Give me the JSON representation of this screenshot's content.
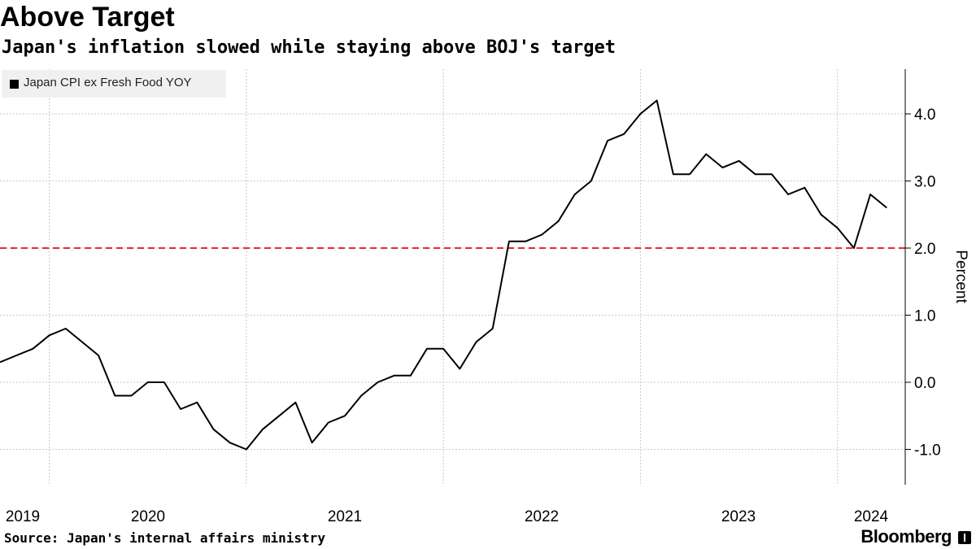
{
  "header": {
    "title": "Above Target",
    "subtitle": "Japan's inflation slowed while staying above BOJ's target"
  },
  "footer": {
    "source": "Source: Japan's internal affairs ministry",
    "brand": "Bloomberg"
  },
  "chart_data": {
    "type": "line",
    "title": "Above Target",
    "subtitle": "Japan's inflation slowed while staying above BOJ's target",
    "ylabel": "Percent",
    "xlabel": "",
    "ylim": [
      -1.5,
      4.7
    ],
    "yticks": [
      -1.0,
      0.0,
      1.0,
      2.0,
      3.0,
      4.0
    ],
    "ytick_labels": [
      "-1.0",
      "0.0",
      "1.0",
      "2.0",
      "3.0",
      "4.0"
    ],
    "xticks": [
      {
        "label": "2019",
        "index": 3
      },
      {
        "label": "2020",
        "index": 9
      },
      {
        "label": "2021",
        "index": 21
      },
      {
        "label": "2022",
        "index": 33
      },
      {
        "label": "2023",
        "index": 45
      },
      {
        "label": "2024",
        "index": 57
      }
    ],
    "grid": true,
    "legend_position": "top-left",
    "target": {
      "value": 2.0,
      "color": "#e8283a",
      "style": "dashed"
    },
    "series": [
      {
        "name": "Japan CPI ex Fresh Food YOY",
        "color": "#000000",
        "start": "2018-09",
        "values": [
          0.3,
          0.4,
          0.5,
          0.7,
          0.8,
          0.6,
          0.4,
          -0.2,
          -0.2,
          0.0,
          0.0,
          -0.4,
          -0.3,
          -0.7,
          -0.9,
          -1.0,
          -0.7,
          -0.5,
          -0.3,
          -0.9,
          -0.6,
          -0.5,
          -0.2,
          0.0,
          0.1,
          0.1,
          0.5,
          0.5,
          0.2,
          0.6,
          0.8,
          2.1,
          2.1,
          2.2,
          2.4,
          2.8,
          3.0,
          3.6,
          3.7,
          4.0,
          4.2,
          3.1,
          3.1,
          3.4,
          3.2,
          3.3,
          3.1,
          3.1,
          2.8,
          2.9,
          2.5,
          2.3,
          2.0,
          2.8,
          2.6
        ]
      }
    ]
  }
}
